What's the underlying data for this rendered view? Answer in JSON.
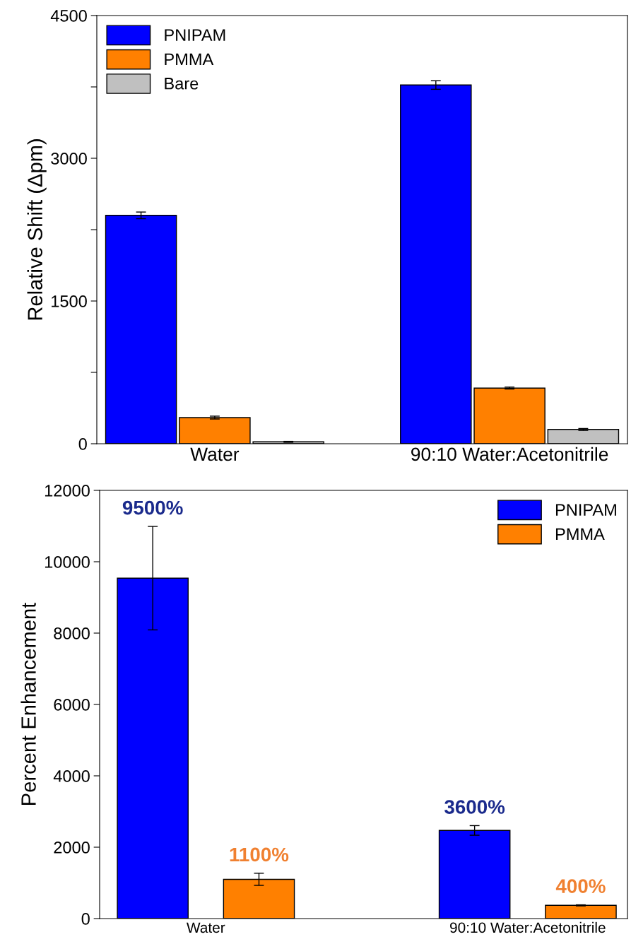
{
  "chart_data": [
    {
      "type": "bar",
      "ylabel": "Relative Shift (Δpm)",
      "categories": [
        "Water",
        "90:10 Water:Acetonitrile"
      ],
      "ylim": [
        0,
        4500
      ],
      "yticks": [
        0,
        {
          "value": 750,
          "label": null
        },
        1500,
        {
          "value": 2250,
          "label": null
        },
        3000,
        {
          "value": 3750,
          "label": null
        },
        4500
      ],
      "legend": "top left",
      "grid": false,
      "series": [
        {
          "name": "PNIPAM",
          "color": "#0000ff",
          "values": [
            2400,
            3770
          ],
          "errors": [
            35,
            45
          ]
        },
        {
          "name": "PMMA",
          "color": "#ff8000",
          "values": [
            275,
            585
          ],
          "errors": [
            15,
            10
          ]
        },
        {
          "name": "Bare",
          "color": "#c0c0c0",
          "values": [
            20,
            150
          ],
          "errors": [
            5,
            10
          ]
        }
      ]
    },
    {
      "type": "bar",
      "ylabel": "Percent Enhancement",
      "categories": [
        "Water",
        "90:10 Water:Acetonitrile"
      ],
      "ylim": [
        0,
        12000
      ],
      "yticks": [
        0,
        2000,
        4000,
        6000,
        8000,
        10000,
        12000
      ],
      "legend": "top right",
      "grid": false,
      "series": [
        {
          "name": "PNIPAM",
          "color": "#0000ff",
          "values": [
            9540,
            2470
          ],
          "errors": [
            1450,
            135
          ]
        },
        {
          "name": "PMMA",
          "color": "#ff8000",
          "values": [
            1100,
            370
          ],
          "errors": [
            170,
            15
          ]
        }
      ],
      "annotations": [
        "9500%",
        "1100%",
        "3600%",
        "400%"
      ]
    }
  ]
}
